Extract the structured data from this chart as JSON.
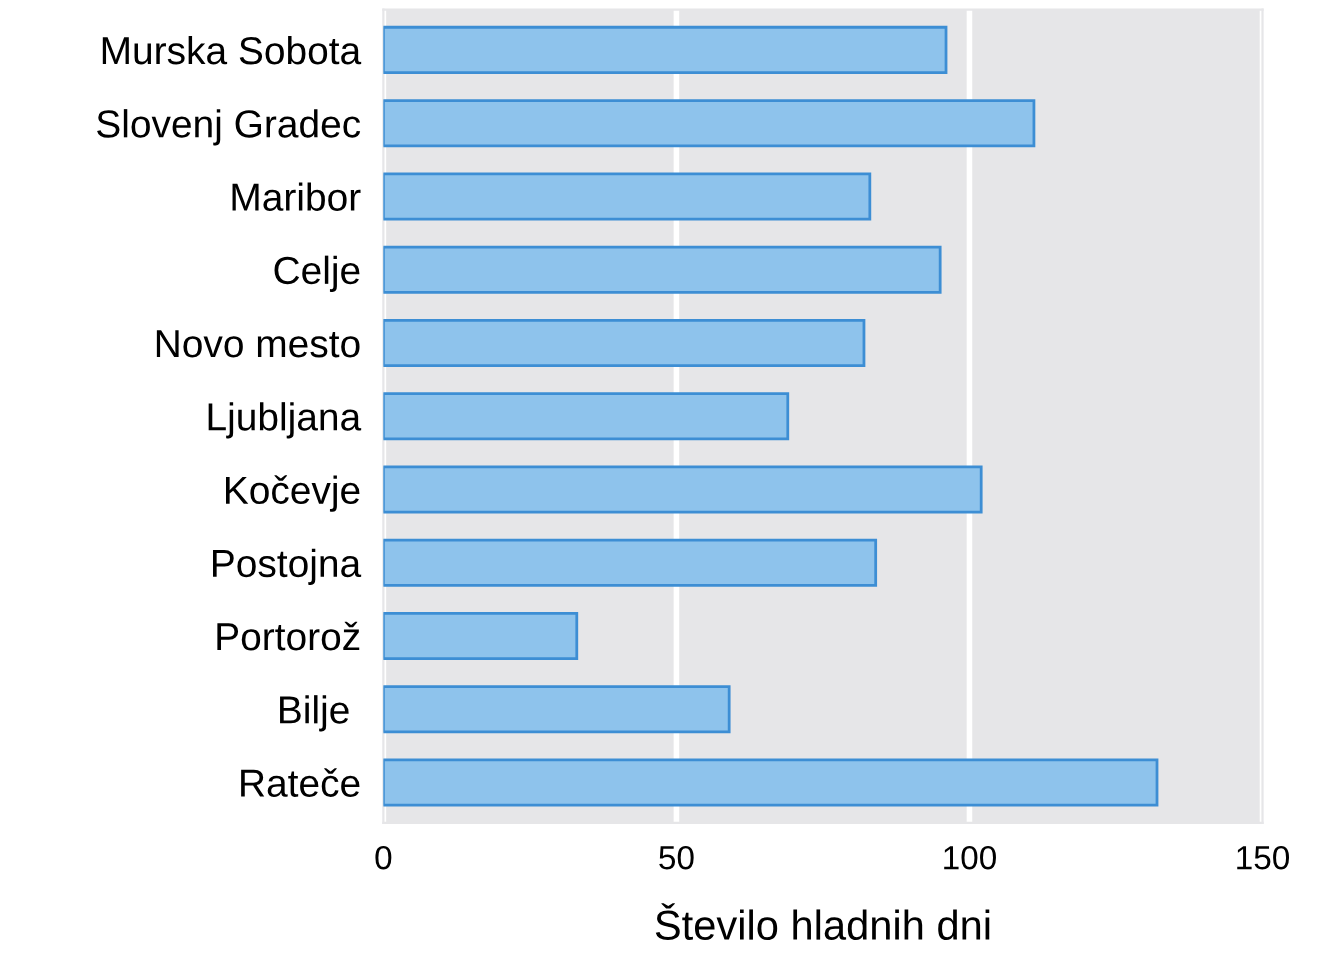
{
  "chart_data": {
    "type": "bar",
    "orientation": "horizontal",
    "xlabel": "Število hladnih dni",
    "categories": [
      "Murska Sobota",
      "Slovenj Gradec",
      "Maribor",
      "Celje",
      "Novo mesto",
      "Ljubljana",
      "Kočevje",
      "Postojna",
      "Portorož",
      "Bilje ",
      "Rateče"
    ],
    "values": [
      96,
      111,
      83,
      95,
      82,
      69,
      102,
      84,
      33,
      59,
      132
    ],
    "color": "#8ec3ec",
    "xlim": [
      0,
      150
    ],
    "xticks": [
      0,
      50,
      100,
      150
    ],
    "grid": "x"
  }
}
